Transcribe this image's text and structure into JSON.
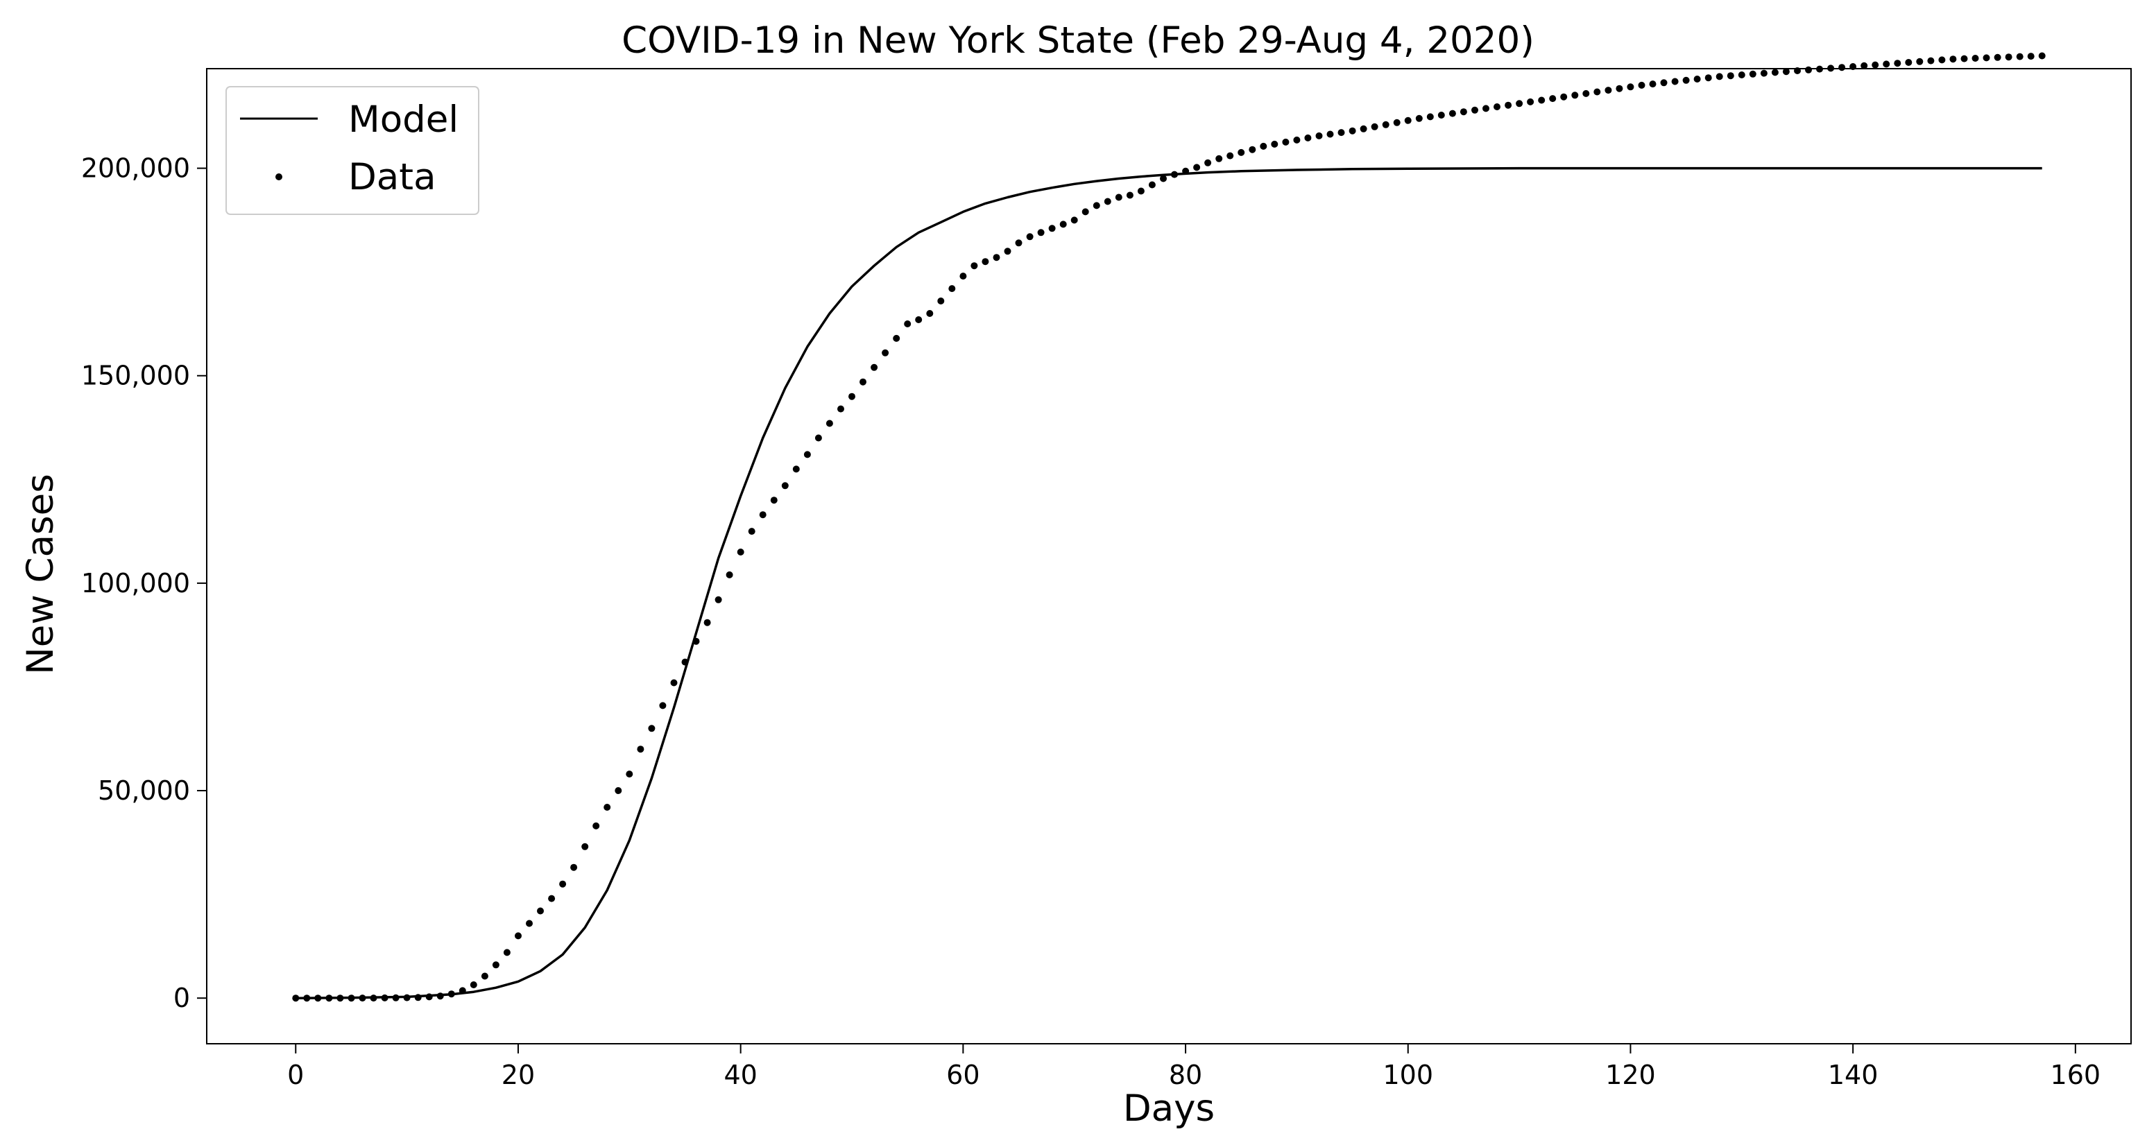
{
  "chart_data": {
    "type": "line",
    "title": "COVID-19 in New York State (Feb 29-Aug 4, 2020)",
    "xlabel": "Days",
    "ylabel": "New Cases",
    "xlim": [
      -8,
      165
    ],
    "ylim": [
      -11000,
      224000
    ],
    "xticks": [
      0,
      20,
      40,
      60,
      80,
      100,
      120,
      140,
      160
    ],
    "yticks": [
      0,
      50000,
      100000,
      150000,
      200000
    ],
    "xtick_labels": [
      "0",
      "20",
      "40",
      "60",
      "80",
      "100",
      "120",
      "140",
      "160"
    ],
    "ytick_labels": [
      "0",
      "50,000",
      "100,000",
      "150,000",
      "200,000"
    ],
    "grid": false,
    "legend": {
      "position": "top-left",
      "entries": [
        {
          "name": "Model",
          "marker": "line"
        },
        {
          "name": "Data",
          "marker": "dot"
        }
      ]
    },
    "series": [
      {
        "name": "Model",
        "style": "line",
        "color": "#000000",
        "x": [
          0,
          5,
          10,
          12,
          14,
          16,
          18,
          20,
          22,
          24,
          26,
          28,
          30,
          32,
          34,
          36,
          38,
          40,
          42,
          44,
          46,
          48,
          50,
          52,
          54,
          56,
          58,
          60,
          62,
          64,
          66,
          68,
          70,
          72,
          74,
          76,
          78,
          80,
          82,
          85,
          90,
          95,
          100,
          110,
          120,
          130,
          140,
          150,
          157
        ],
        "y": [
          0,
          100,
          300,
          600,
          900,
          1500,
          2500,
          4000,
          6500,
          10500,
          17000,
          26000,
          38000,
          53000,
          70000,
          88000,
          106000,
          121000,
          135000,
          147000,
          157000,
          165000,
          171500,
          176500,
          181000,
          184500,
          187000,
          189500,
          191500,
          193000,
          194300,
          195300,
          196200,
          196900,
          197500,
          198000,
          198400,
          198700,
          199000,
          199300,
          199600,
          199800,
          199900,
          200000,
          200000,
          200000,
          200000,
          200000,
          200000
        ]
      },
      {
        "name": "Data",
        "style": "dots",
        "color": "#000000",
        "x": [
          0,
          1,
          2,
          3,
          4,
          5,
          6,
          7,
          8,
          9,
          10,
          11,
          12,
          13,
          14,
          15,
          16,
          17,
          18,
          19,
          20,
          21,
          22,
          23,
          24,
          25,
          26,
          27,
          28,
          29,
          30,
          31,
          32,
          33,
          34,
          35,
          36,
          37,
          38,
          39,
          40,
          41,
          42,
          43,
          44,
          45,
          46,
          47,
          48,
          49,
          50,
          51,
          52,
          53,
          54,
          55,
          56,
          57,
          58,
          59,
          60,
          61,
          62,
          63,
          64,
          65,
          66,
          67,
          68,
          69,
          70,
          71,
          72,
          73,
          74,
          75,
          76,
          77,
          78,
          79,
          80,
          81,
          82,
          83,
          84,
          85,
          86,
          87,
          88,
          89,
          90,
          91,
          92,
          93,
          94,
          95,
          96,
          97,
          98,
          99,
          100,
          101,
          102,
          103,
          104,
          105,
          106,
          107,
          108,
          109,
          110,
          111,
          112,
          113,
          114,
          115,
          116,
          117,
          118,
          119,
          120,
          121,
          122,
          123,
          124,
          125,
          126,
          127,
          128,
          129,
          130,
          131,
          132,
          133,
          134,
          135,
          136,
          137,
          138,
          139,
          140,
          141,
          142,
          143,
          144,
          145,
          146,
          147,
          148,
          149,
          150,
          151,
          152,
          153,
          154,
          155,
          156,
          157
        ],
        "y": [
          1,
          1,
          1,
          1,
          2,
          3,
          11,
          22,
          44,
          60,
          100,
          150,
          300,
          500,
          1000,
          1800,
          3200,
          5300,
          8000,
          11000,
          15000,
          18000,
          21000,
          24000,
          27500,
          31500,
          36500,
          41500,
          46000,
          50000,
          54000,
          60000,
          65000,
          70500,
          76000,
          81000,
          86000,
          90500,
          96000,
          102000,
          107500,
          112500,
          116500,
          120000,
          123500,
          127500,
          131000,
          135000,
          138500,
          142000,
          145000,
          148500,
          152000,
          155500,
          159000,
          162500,
          163500,
          165000,
          168000,
          171000,
          174000,
          176500,
          177500,
          178500,
          180000,
          182000,
          183500,
          184500,
          185500,
          186500,
          187500,
          189500,
          191000,
          192000,
          193000,
          193500,
          194500,
          196000,
          197500,
          198500,
          199300,
          200200,
          201300,
          202300,
          203000,
          203800,
          204500,
          205300,
          205800,
          206300,
          206800,
          207300,
          207800,
          208200,
          208600,
          209000,
          209500,
          210000,
          210500,
          211000,
          211500,
          212000,
          212400,
          212800,
          213200,
          213600,
          214000,
          214400,
          214800,
          215200,
          215600,
          216000,
          216400,
          216800,
          217200,
          217600,
          218000,
          218400,
          218800,
          219200,
          219600,
          220000,
          220300,
          220600,
          220900,
          221200,
          221500,
          221800,
          222100,
          222300,
          222500,
          222700,
          222900,
          223100,
          223300,
          223500,
          223700,
          223900,
          224100,
          224300,
          224500,
          224700,
          224900,
          225100,
          225300,
          225500,
          225700,
          225900,
          226100,
          226300,
          226400,
          226500,
          226600,
          226700,
          226800,
          226900,
          227000,
          227100
        ]
      }
    ]
  }
}
